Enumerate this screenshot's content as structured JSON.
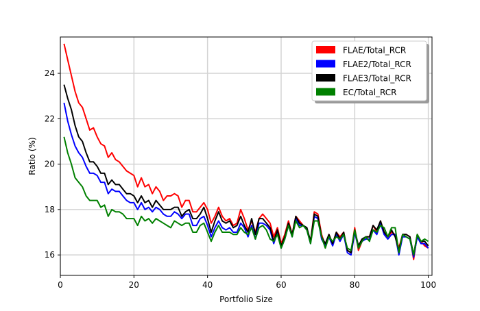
{
  "chart_data": {
    "type": "line",
    "title": "",
    "xlabel": "Portfolio Size",
    "ylabel": "Ratio (%)",
    "xlim": [
      0,
      101
    ],
    "ylim": [
      15.1,
      25.6
    ],
    "xticks": [
      0,
      20,
      40,
      60,
      80,
      100
    ],
    "yticks": [
      16,
      18,
      20,
      22,
      24
    ],
    "grid": true,
    "legend_position": "top-right",
    "x": [
      1,
      2,
      3,
      4,
      5,
      6,
      7,
      8,
      9,
      10,
      11,
      12,
      13,
      14,
      15,
      16,
      17,
      18,
      19,
      20,
      21,
      22,
      23,
      24,
      25,
      26,
      27,
      28,
      29,
      30,
      31,
      32,
      33,
      34,
      35,
      36,
      37,
      38,
      39,
      40,
      41,
      42,
      43,
      44,
      45,
      46,
      47,
      48,
      49,
      50,
      51,
      52,
      53,
      54,
      55,
      56,
      57,
      58,
      59,
      60,
      61,
      62,
      63,
      64,
      65,
      66,
      67,
      68,
      69,
      70,
      71,
      72,
      73,
      74,
      75,
      76,
      77,
      78,
      79,
      80,
      81,
      82,
      83,
      84,
      85,
      86,
      87,
      88,
      89,
      90,
      91,
      92,
      93,
      94,
      95,
      96,
      97,
      98,
      99,
      100
    ],
    "series": [
      {
        "name": "FLAE/Total_RCR",
        "color": "#ff0000",
        "values": [
          25.3,
          24.6,
          23.9,
          23.2,
          22.7,
          22.5,
          22.0,
          21.5,
          21.6,
          21.2,
          20.9,
          20.8,
          20.3,
          20.5,
          20.2,
          20.1,
          19.9,
          19.7,
          19.6,
          19.5,
          19.0,
          19.4,
          19.0,
          19.1,
          18.7,
          19.0,
          18.8,
          18.4,
          18.6,
          18.6,
          18.7,
          18.6,
          18.1,
          18.4,
          18.4,
          17.9,
          17.9,
          18.1,
          18.3,
          18.0,
          17.4,
          17.7,
          18.1,
          17.7,
          17.5,
          17.6,
          17.3,
          17.4,
          18.0,
          17.6,
          17.1,
          17.5,
          17.0,
          17.6,
          17.8,
          17.6,
          17.4,
          16.8,
          17.2,
          16.5,
          16.9,
          17.5,
          16.9,
          17.7,
          17.5,
          17.3,
          17.1,
          16.6,
          17.9,
          17.8,
          16.9,
          16.4,
          16.9,
          16.5,
          17.0,
          16.8,
          17.0,
          16.2,
          16.1,
          17.2,
          16.2,
          16.6,
          16.8,
          16.8,
          17.3,
          17.0,
          17.5,
          17.0,
          16.8,
          17.0,
          16.9,
          16.3,
          16.9,
          16.9,
          16.8,
          15.8,
          16.9,
          16.6,
          16.4,
          16.3
        ]
      },
      {
        "name": "FLAE2/Total_RCR",
        "color": "#0000ff",
        "values": [
          22.7,
          21.9,
          21.3,
          20.8,
          20.5,
          20.3,
          19.9,
          19.6,
          19.6,
          19.5,
          19.2,
          19.2,
          18.7,
          18.9,
          18.8,
          18.8,
          18.6,
          18.4,
          18.3,
          18.3,
          18.0,
          18.3,
          18.0,
          18.1,
          17.9,
          18.1,
          18.0,
          17.8,
          17.7,
          17.7,
          17.9,
          17.8,
          17.6,
          17.8,
          17.8,
          17.3,
          17.3,
          17.6,
          17.7,
          17.3,
          16.8,
          17.2,
          17.5,
          17.2,
          17.1,
          17.2,
          17.0,
          17.0,
          17.4,
          17.2,
          16.8,
          17.3,
          16.7,
          17.4,
          17.4,
          17.3,
          17.1,
          16.5,
          17.0,
          16.3,
          16.7,
          17.3,
          16.8,
          17.6,
          17.3,
          17.3,
          17.1,
          16.5,
          17.7,
          17.6,
          16.7,
          16.4,
          16.8,
          16.4,
          16.9,
          16.6,
          16.9,
          16.1,
          16.0,
          17.0,
          16.3,
          16.6,
          16.7,
          16.7,
          17.1,
          16.9,
          17.4,
          16.9,
          16.7,
          16.9,
          16.9,
          16.0,
          16.8,
          16.8,
          16.7,
          15.9,
          16.8,
          16.5,
          16.5,
          16.3
        ]
      },
      {
        "name": "FLAE3/Total_RCR",
        "color": "#000000",
        "values": [
          23.5,
          22.9,
          22.4,
          21.7,
          21.2,
          21.0,
          20.5,
          20.1,
          20.1,
          19.9,
          19.6,
          19.6,
          19.1,
          19.3,
          19.1,
          19.1,
          18.9,
          18.7,
          18.7,
          18.6,
          18.3,
          18.6,
          18.3,
          18.4,
          18.1,
          18.4,
          18.2,
          18.0,
          18.0,
          18.0,
          18.1,
          18.1,
          17.7,
          17.9,
          18.0,
          17.6,
          17.6,
          17.8,
          18.1,
          17.6,
          17.0,
          17.5,
          17.9,
          17.5,
          17.4,
          17.5,
          17.2,
          17.3,
          17.7,
          17.3,
          17.0,
          17.6,
          16.9,
          17.6,
          17.6,
          17.4,
          17.2,
          16.6,
          17.1,
          16.4,
          16.8,
          17.4,
          16.9,
          17.7,
          17.4,
          17.3,
          17.2,
          16.6,
          17.8,
          17.7,
          16.8,
          16.5,
          16.9,
          16.5,
          17.0,
          16.7,
          17.0,
          16.2,
          16.1,
          17.1,
          16.4,
          16.7,
          16.8,
          16.8,
          17.3,
          17.1,
          17.5,
          17.0,
          16.8,
          17.1,
          16.8,
          16.2,
          16.9,
          16.9,
          16.8,
          16.0,
          16.9,
          16.6,
          16.6,
          16.4
        ]
      },
      {
        "name": "EC/Total_RCR",
        "color": "#008000",
        "values": [
          21.2,
          20.5,
          20.0,
          19.4,
          19.2,
          19.0,
          18.6,
          18.4,
          18.4,
          18.4,
          18.1,
          18.2,
          17.7,
          18.0,
          17.9,
          17.9,
          17.8,
          17.6,
          17.6,
          17.6,
          17.3,
          17.7,
          17.5,
          17.6,
          17.4,
          17.6,
          17.5,
          17.4,
          17.3,
          17.2,
          17.5,
          17.4,
          17.3,
          17.4,
          17.4,
          17.0,
          17.0,
          17.3,
          17.4,
          17.0,
          16.6,
          17.0,
          17.3,
          17.0,
          17.0,
          17.0,
          16.9,
          16.9,
          17.2,
          17.0,
          16.9,
          17.2,
          16.7,
          17.2,
          17.3,
          17.1,
          16.7,
          16.6,
          16.9,
          16.3,
          16.7,
          17.3,
          16.8,
          17.5,
          17.2,
          17.3,
          17.1,
          16.5,
          17.5,
          17.5,
          16.8,
          16.3,
          16.8,
          16.6,
          16.8,
          16.7,
          16.9,
          16.3,
          16.2,
          17.1,
          16.3,
          16.6,
          16.8,
          16.6,
          17.1,
          17.0,
          17.3,
          17.2,
          16.8,
          17.2,
          17.2,
          16.1,
          16.9,
          16.8,
          16.7,
          16.0,
          16.9,
          16.6,
          16.7,
          16.6
        ]
      }
    ]
  }
}
